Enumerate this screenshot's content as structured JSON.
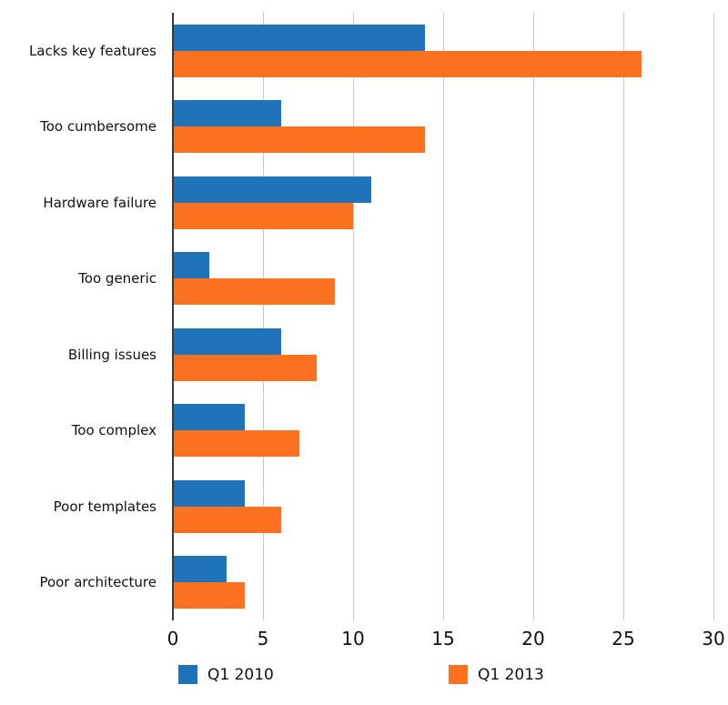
{
  "chart_data": {
    "type": "bar",
    "orientation": "horizontal",
    "title": "",
    "xlabel": "",
    "ylabel": "",
    "categories": [
      "Lacks key features",
      "Too cumbersome",
      "Hardware failure",
      "Too generic",
      "Billing issues",
      "Too complex",
      "Poor templates",
      "Poor architecture"
    ],
    "series": [
      {
        "name": "Q1 2010",
        "color": "#1F74B9",
        "values": [
          14,
          6,
          11,
          2,
          6,
          4,
          4,
          3
        ]
      },
      {
        "name": "Q1 2013",
        "color": "#FB7120",
        "values": [
          26,
          14,
          10,
          9,
          8,
          7,
          6,
          4
        ]
      }
    ],
    "x_ticks": [
      "0",
      "5",
      "10",
      "15",
      "20",
      "25",
      "30"
    ],
    "x_tick_values": [
      0,
      5,
      10,
      15,
      20,
      25,
      30
    ],
    "xlim": [
      0,
      30
    ],
    "grid": "vertical-only",
    "legend_position": "bottom"
  },
  "colors": {
    "background": "#ffffff",
    "axis_line": "#3a3a3a",
    "gridline": "#c9c9c9",
    "text": "#111111",
    "series_blue": "#1F74B9",
    "series_orange": "#FB7120"
  }
}
